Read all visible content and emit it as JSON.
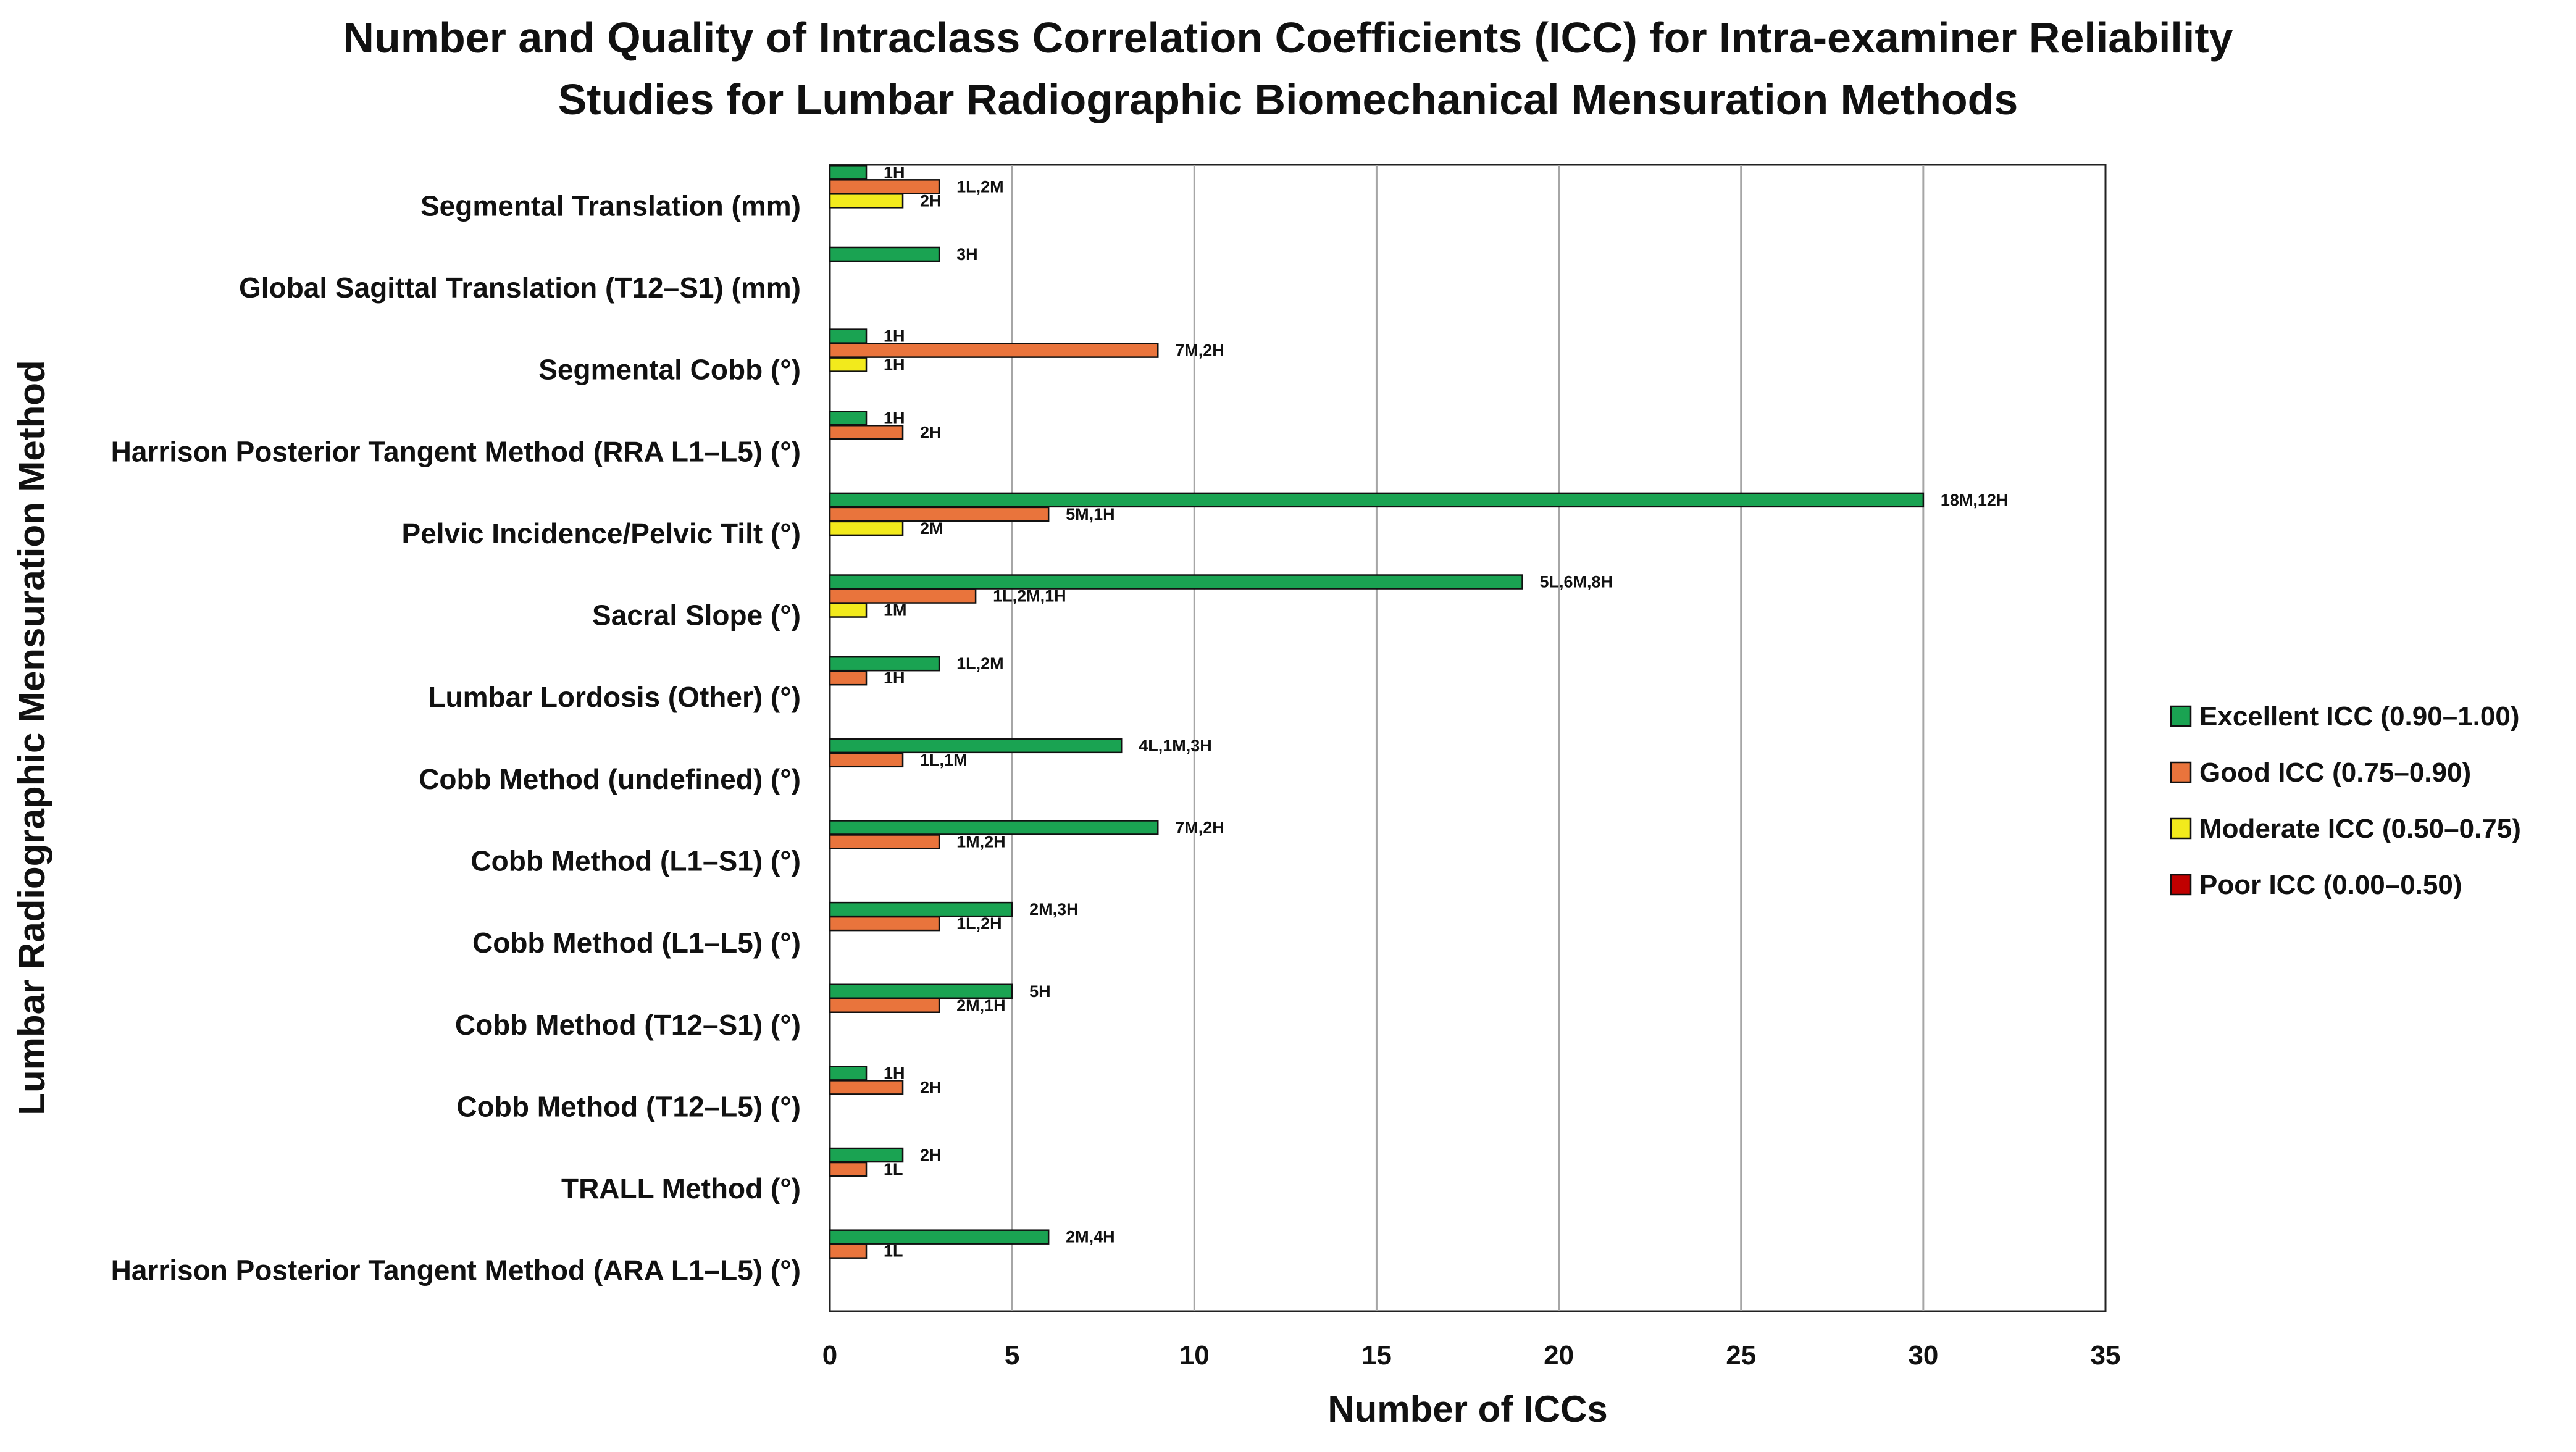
{
  "chart_data": {
    "type": "bar",
    "orientation": "horizontal",
    "title": "Number and Quality of Intraclass Correlation Coefficients (ICC) for Intra-examiner Reliability Studies for Lumbar Radiographic Biomechanical Mensuration Methods",
    "title_lines": [
      "Number and Quality of Intraclass Correlation Coefficients (ICC) for Intra-examiner Reliability",
      "Studies for Lumbar Radiographic Biomechanical Mensuration Methods"
    ],
    "xlabel": "Number of ICCs",
    "ylabel": "Lumbar Radiographic Mensuration Method",
    "xlim": [
      0,
      35
    ],
    "xticks": [
      0,
      5,
      10,
      15,
      20,
      25,
      30,
      35
    ],
    "grid": "vertical",
    "legend_position": "right",
    "categories": [
      "Segmental Translation (mm)",
      "Global Sagittal Translation (T12–S1) (mm)",
      "Segmental Cobb (°)",
      "Harrison Posterior Tangent Method (RRA L1–L5) (°)",
      "Pelvic Incidence/Pelvic Tilt (°)",
      "Sacral Slope (°)",
      "Lumbar Lordosis (Other) (°)",
      "Cobb Method (undefined) (°)",
      "Cobb Method (L1–S1) (°)",
      "Cobb Method (L1–L5) (°)",
      "Cobb Method (T12–S1) (°)",
      "Cobb Method (T12–L5) (°)",
      "TRALL Method (°)",
      "Harrison Posterior Tangent Method (ARA L1–L5) (°)"
    ],
    "series": [
      {
        "name": "Excellent ICC (0.90–1.00)",
        "color": "#1aa352",
        "values": [
          1,
          3,
          1,
          1,
          30,
          19,
          3,
          8,
          9,
          5,
          5,
          1,
          2,
          6
        ],
        "labels": [
          "1H",
          "3H",
          "1H",
          "1H",
          "18M,12H",
          "5L,6M,8H",
          "1L,2M",
          "4L,1M,3H",
          "7M,2H",
          "2M,3H",
          "5H",
          "1H",
          "2H",
          "2M,4H"
        ]
      },
      {
        "name": "Good ICC (0.75–0.90)",
        "color": "#e9743c",
        "values": [
          3,
          0,
          9,
          2,
          6,
          4,
          1,
          2,
          3,
          3,
          3,
          2,
          1,
          1
        ],
        "labels": [
          "1L,2M",
          "",
          "7M,2H",
          "2H",
          "5M,1H",
          "1L,2M,1H",
          "1H",
          "1L,1M",
          "1M,2H",
          "1L,2H",
          "2M,1H",
          "2H",
          "1L",
          "1L"
        ]
      },
      {
        "name": "Moderate ICC (0.50–0.75)",
        "color": "#f2ea1c",
        "values": [
          2,
          0,
          1,
          0,
          2,
          1,
          0,
          0,
          0,
          0,
          0,
          0,
          0,
          0
        ],
        "labels": [
          "2H",
          "",
          "1H",
          "",
          "2M",
          "1M",
          "",
          "",
          "",
          "",
          "",
          "",
          "",
          ""
        ]
      },
      {
        "name": "Poor ICC (0.00–0.50)",
        "color": "#c00000",
        "values": [
          0,
          0,
          0,
          0,
          0,
          0,
          0,
          0,
          0,
          0,
          0,
          0,
          0,
          0
        ],
        "labels": [
          "",
          "",
          "",
          "",
          "",
          "",
          "",
          "",
          "",
          "",
          "",
          "",
          "",
          ""
        ]
      }
    ]
  }
}
